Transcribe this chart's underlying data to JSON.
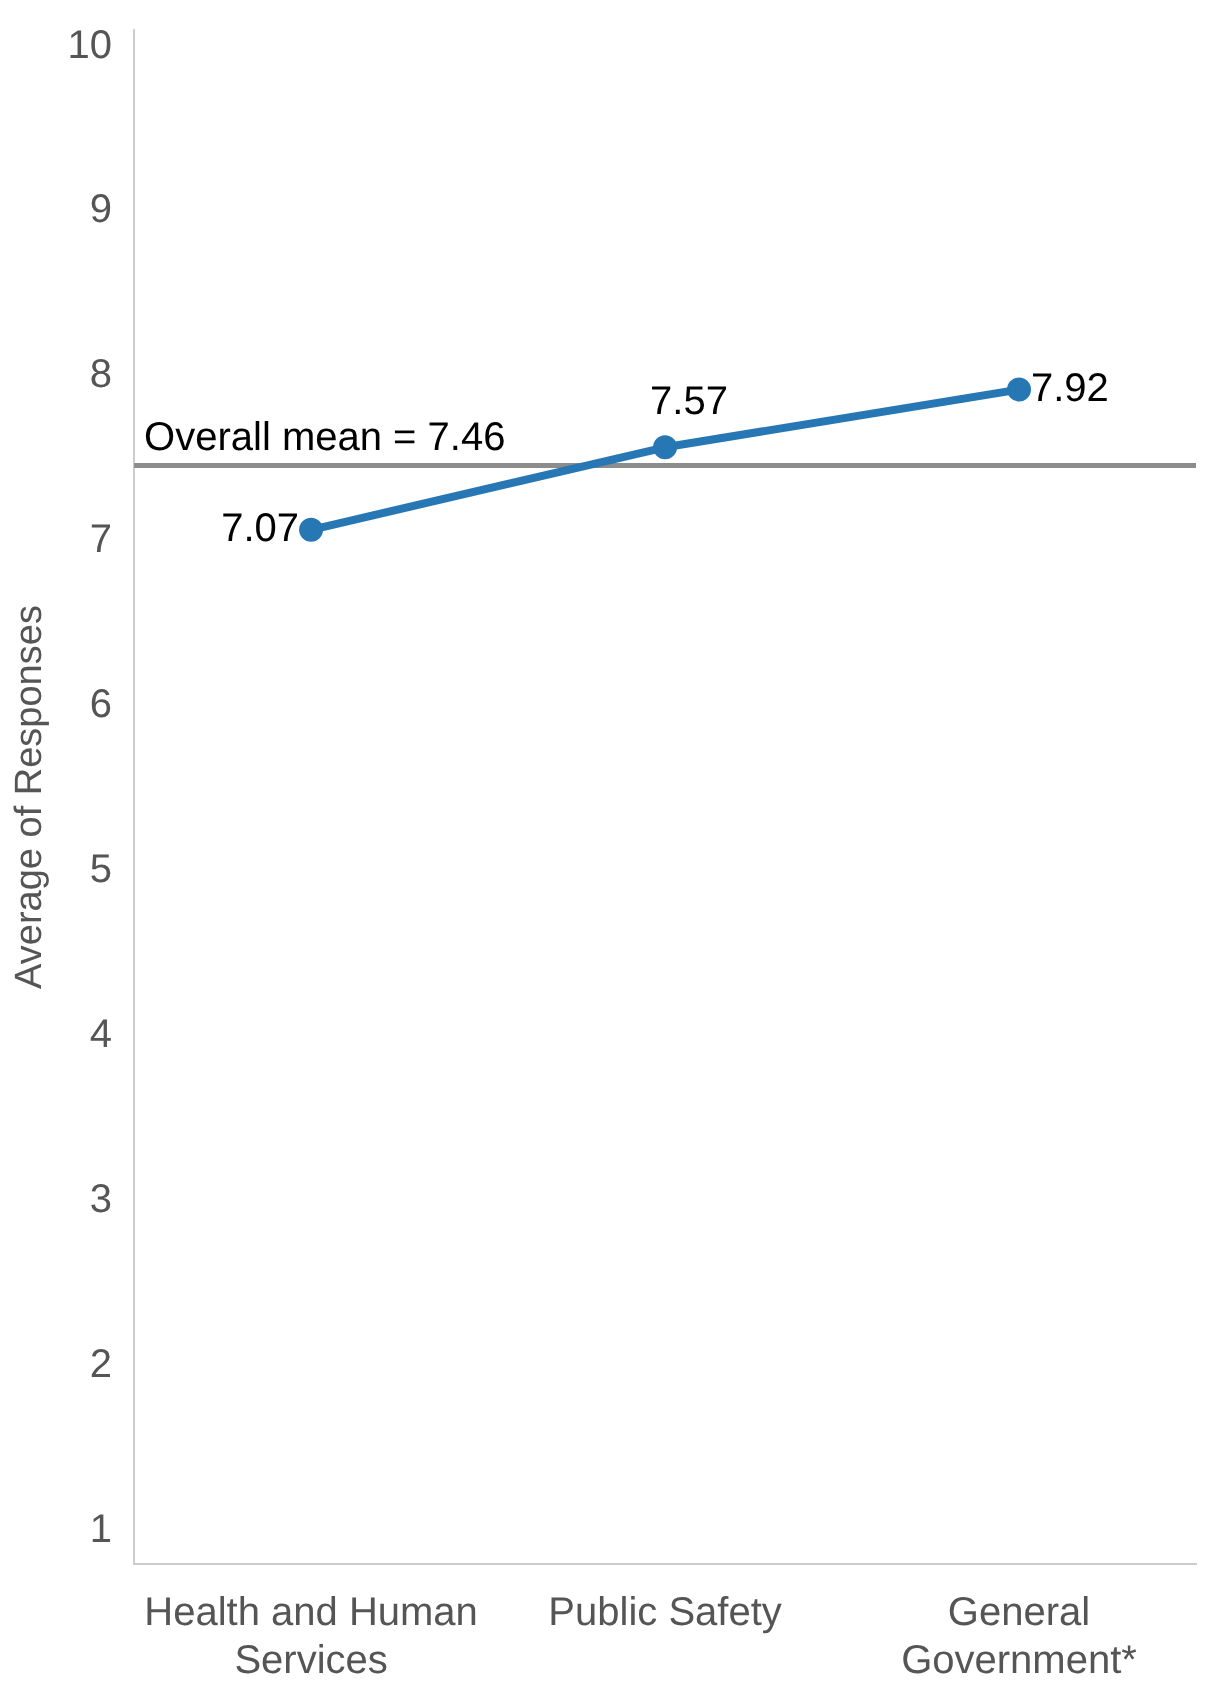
{
  "chart_data": {
    "type": "line",
    "ylabel": "Average of Responses",
    "categories": [
      "Health and Human Services",
      "Public Safety",
      "General Government*"
    ],
    "series": [
      {
        "color": "#2677b4",
        "values": [
          7.07,
          7.57,
          7.92
        ]
      }
    ],
    "ylim": [
      0.8,
      10.1
    ],
    "yticks": [
      1,
      2,
      3,
      4,
      5,
      6,
      7,
      8,
      9,
      10
    ],
    "ref_lines": [
      {
        "axis": "y",
        "value": 7.46,
        "label": "Overall mean = 7.46",
        "color": "#8c8c8c"
      }
    ],
    "data_labels": true,
    "grid": false,
    "legend": false,
    "marker": "circle",
    "line_style": "solid"
  }
}
